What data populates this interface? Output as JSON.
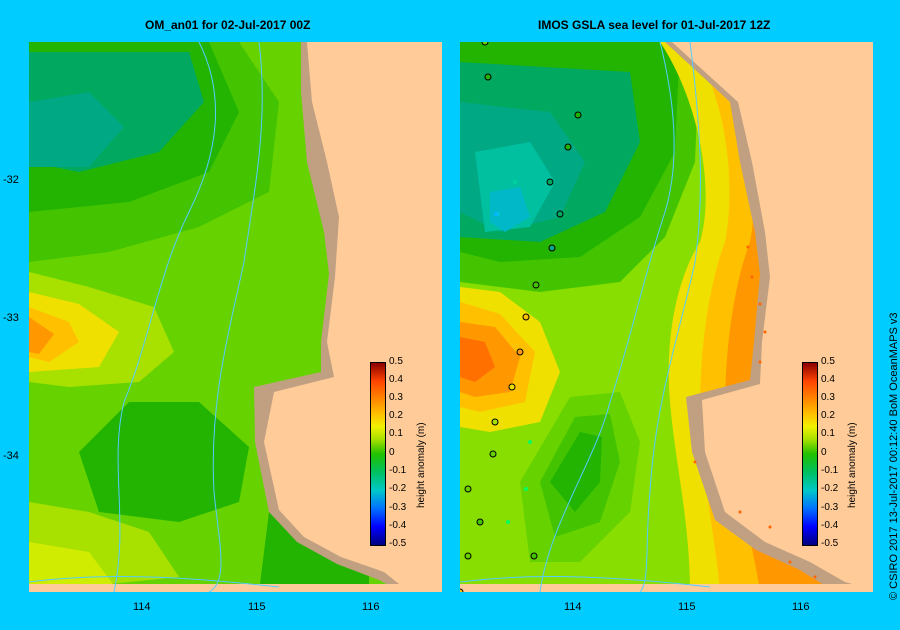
{
  "left_panel": {
    "title": "OM_an01  for 02-Jul-2017 00Z"
  },
  "right_panel": {
    "title": "IMOS GSLA sea level  for 01-Jul-2017 12Z"
  },
  "latitude_labels": [
    "-32",
    "-33",
    "-34"
  ],
  "longitude_labels": [
    "114",
    "115",
    "116"
  ],
  "colorbar": {
    "label": "height anomaly (m)",
    "ticks": [
      "0.5",
      "0.4",
      "0.3",
      "0.2",
      "0.1",
      "0",
      "-0.1",
      "-0.2",
      "-0.3",
      "-0.4",
      "-0.5"
    ]
  },
  "credit": "© CSIRO 2017   13-Jul-2017 00:12:40 BoM OceanMAPS v3",
  "colors": {
    "background": "#00ccff",
    "land": "#ffcc99",
    "shelf": "#c0a080"
  }
}
